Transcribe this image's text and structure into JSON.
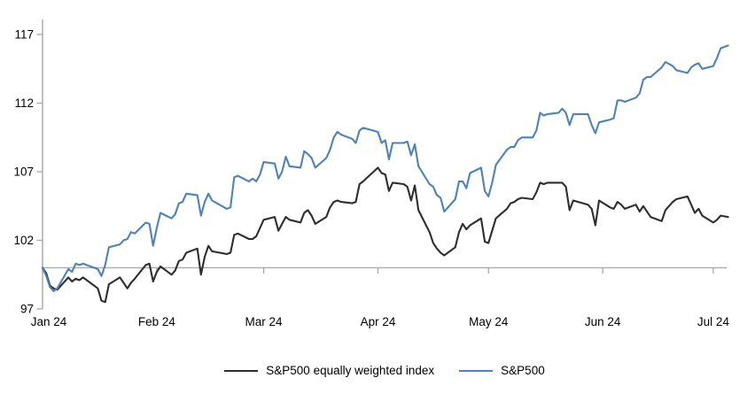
{
  "chart_data": {
    "type": "line",
    "title": "",
    "xlabel": "",
    "ylabel": "",
    "grid": false,
    "legend_position": "bottom-center",
    "baseline_value": 100,
    "y_axis": {
      "min": 97,
      "max": 117,
      "ticks": [
        97,
        102,
        107,
        112,
        117
      ]
    },
    "x_axis": {
      "tick_labels": [
        "Jan 24",
        "Feb 24",
        "Mar 24",
        "Apr 24",
        "May 24",
        "Jun 24",
        "Jul 24"
      ],
      "tick_dates": [
        "01-01",
        "02-01",
        "03-01",
        "04-01",
        "05-01",
        "06-01",
        "07-01"
      ]
    },
    "dates": [
      "01-01",
      "01-02",
      "01-03",
      "01-04",
      "01-05",
      "01-08",
      "01-09",
      "01-10",
      "01-11",
      "01-12",
      "01-16",
      "01-17",
      "01-18",
      "01-19",
      "01-22",
      "01-23",
      "01-24",
      "01-25",
      "01-26",
      "01-29",
      "01-30",
      "01-31",
      "02-01",
      "02-02",
      "02-05",
      "02-06",
      "02-07",
      "02-08",
      "02-09",
      "02-12",
      "02-13",
      "02-14",
      "02-15",
      "02-16",
      "02-20",
      "02-21",
      "02-22",
      "02-23",
      "02-26",
      "02-27",
      "02-28",
      "02-29",
      "03-01",
      "03-04",
      "03-05",
      "03-06",
      "03-07",
      "03-08",
      "03-11",
      "03-12",
      "03-13",
      "03-14",
      "03-15",
      "03-18",
      "03-19",
      "03-20",
      "03-21",
      "03-22",
      "03-25",
      "03-26",
      "03-27",
      "03-28",
      "04-01",
      "04-02",
      "04-03",
      "04-04",
      "04-05",
      "04-08",
      "04-09",
      "04-10",
      "04-11",
      "04-12",
      "04-15",
      "04-16",
      "04-17",
      "04-18",
      "04-19",
      "04-22",
      "04-23",
      "04-24",
      "04-25",
      "04-26",
      "04-29",
      "04-30",
      "05-01",
      "05-02",
      "05-03",
      "05-06",
      "05-07",
      "05-08",
      "05-09",
      "05-10",
      "05-13",
      "05-14",
      "05-15",
      "05-16",
      "05-17",
      "05-20",
      "05-21",
      "05-22",
      "05-23",
      "05-24",
      "05-28",
      "05-29",
      "05-30",
      "05-31",
      "06-03",
      "06-04",
      "06-05",
      "06-06",
      "06-07",
      "06-10",
      "06-11",
      "06-12",
      "06-13",
      "06-14",
      "06-17",
      "06-18",
      "06-20",
      "06-21",
      "06-24",
      "06-25",
      "06-26",
      "06-27",
      "06-28",
      "07-01",
      "07-02",
      "07-03",
      "07-05"
    ],
    "series": [
      {
        "name": "S&P500 equally weighted index",
        "color": "#2e2e2e",
        "values": [
          100.0,
          99.6,
          98.7,
          98.5,
          98.4,
          99.3,
          99.0,
          99.2,
          99.1,
          99.3,
          98.5,
          97.6,
          97.5,
          98.8,
          99.3,
          98.9,
          98.5,
          98.9,
          99.2,
          100.2,
          100.3,
          99.0,
          99.7,
          100.1,
          99.5,
          99.8,
          100.5,
          100.6,
          101.1,
          101.4,
          99.5,
          100.8,
          101.6,
          101.2,
          101.0,
          101.1,
          102.4,
          102.5,
          102.1,
          102.1,
          102.3,
          102.9,
          103.5,
          103.7,
          102.7,
          103.2,
          103.7,
          103.5,
          103.3,
          104.0,
          104.2,
          103.8,
          103.2,
          103.7,
          104.4,
          104.8,
          104.9,
          104.8,
          104.7,
          104.8,
          106.1,
          106.3,
          107.3,
          106.9,
          106.8,
          105.6,
          106.2,
          106.1,
          105.9,
          104.9,
          106.0,
          104.2,
          102.6,
          101.8,
          101.4,
          101.1,
          100.9,
          101.5,
          102.6,
          103.2,
          102.8,
          103.1,
          103.6,
          101.9,
          101.8,
          102.7,
          103.6,
          104.3,
          104.7,
          104.8,
          105.0,
          105.1,
          105.0,
          105.5,
          106.2,
          106.1,
          106.2,
          106.2,
          106.2,
          105.9,
          104.2,
          104.9,
          104.6,
          104.3,
          103.1,
          104.9,
          104.4,
          104.3,
          104.8,
          104.6,
          104.3,
          104.6,
          104.1,
          104.5,
          104.1,
          103.7,
          103.4,
          104.2,
          104.8,
          105.0,
          105.2,
          104.6,
          104.0,
          104.3,
          103.8,
          103.3,
          103.5,
          103.8,
          103.7
        ]
      },
      {
        "name": "S&P500",
        "color": "#4d82bc",
        "values": [
          100.0,
          99.4,
          98.6,
          98.3,
          98.5,
          99.9,
          99.7,
          100.3,
          100.2,
          100.3,
          99.9,
          99.4,
          100.2,
          101.5,
          101.7,
          102.0,
          102.1,
          102.6,
          102.5,
          103.3,
          103.2,
          101.6,
          102.9,
          104.0,
          103.6,
          103.9,
          104.7,
          104.8,
          105.4,
          105.3,
          103.8,
          104.8,
          105.4,
          104.9,
          104.3,
          104.4,
          106.6,
          106.7,
          106.3,
          106.5,
          106.3,
          106.8,
          107.7,
          107.6,
          106.5,
          107.0,
          108.1,
          107.4,
          107.3,
          108.5,
          108.3,
          108.0,
          107.3,
          108.0,
          108.6,
          109.5,
          109.9,
          109.7,
          109.4,
          109.1,
          110.0,
          110.2,
          109.9,
          109.1,
          109.3,
          107.9,
          109.1,
          109.1,
          109.2,
          108.2,
          109.0,
          107.4,
          106.1,
          105.9,
          105.3,
          105.1,
          104.1,
          105.0,
          106.3,
          106.3,
          105.8,
          106.9,
          107.3,
          105.6,
          105.2,
          106.2,
          107.5,
          108.6,
          108.8,
          108.8,
          109.3,
          109.5,
          109.5,
          110.0,
          111.3,
          111.1,
          111.2,
          111.3,
          111.6,
          111.3,
          110.4,
          111.2,
          111.2,
          110.4,
          109.8,
          110.6,
          110.8,
          110.9,
          112.2,
          112.2,
          112.1,
          112.4,
          112.7,
          113.7,
          113.9,
          113.9,
          114.6,
          115.0,
          114.7,
          114.4,
          114.2,
          114.6,
          114.8,
          114.9,
          114.5,
          114.7,
          115.3,
          116.0,
          116.2
        ]
      }
    ]
  },
  "legend": {
    "items": [
      {
        "label": "S&P500 equally weighted index",
        "color": "#2e2e2e"
      },
      {
        "label": "S&P500",
        "color": "#4d82bc"
      }
    ]
  },
  "colors": {
    "axis": "#a6a6a6",
    "text": "#000000",
    "background": "#ffffff"
  }
}
